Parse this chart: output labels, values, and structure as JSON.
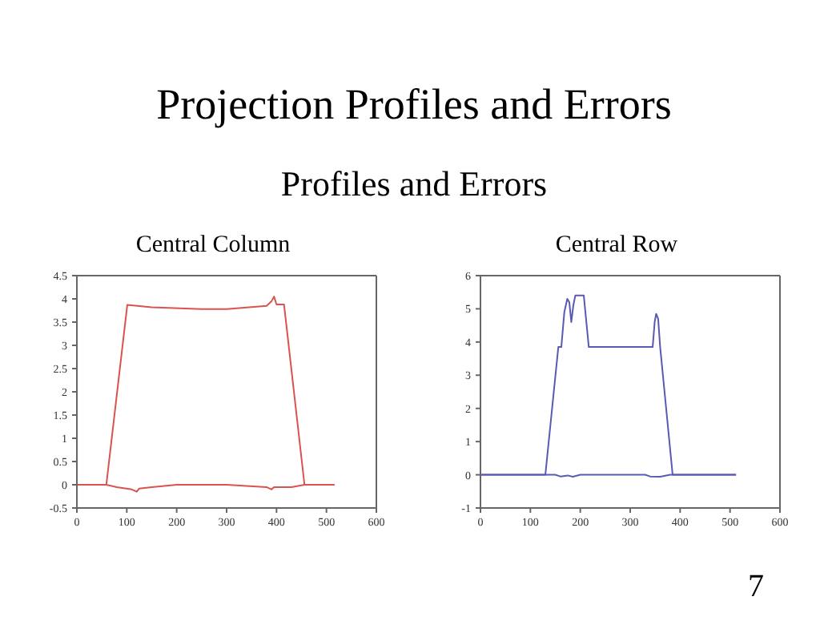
{
  "chart_data": [
    {
      "type": "line",
      "title": "Central Column",
      "annotations": [
        "Projection Profiles and Errors",
        "Profiles and Errors",
        "7"
      ],
      "xlim": [
        0,
        600
      ],
      "xticks": [
        0,
        100,
        200,
        300,
        400,
        500,
        600
      ],
      "ylim": [
        -0.5,
        4.5
      ],
      "yticks": [
        -0.5,
        0,
        0.5,
        1,
        1.5,
        2,
        2.5,
        3,
        3.5,
        4,
        4.5
      ],
      "marker": "none",
      "series": [
        {
          "color": "#d9534f",
          "x": [
            0,
            59,
            101,
            150,
            250,
            300,
            380,
            390,
            395,
            400,
            415,
            456,
            516
          ],
          "values": [
            0,
            0,
            3.87,
            3.82,
            3.78,
            3.78,
            3.85,
            3.95,
            4.05,
            3.88,
            3.88,
            0,
            0
          ]
        },
        {
          "color": "#d9534f",
          "x": [
            0,
            59,
            80,
            110,
            120,
            125,
            150,
            200,
            300,
            380,
            390,
            395,
            430,
            456,
            516
          ],
          "values": [
            0,
            0,
            -0.05,
            -0.1,
            -0.15,
            -0.08,
            -0.05,
            0,
            0,
            -0.05,
            -0.1,
            -0.05,
            -0.05,
            0,
            0
          ]
        }
      ]
    },
    {
      "type": "line",
      "title": "Central Row",
      "xlim": [
        0,
        600
      ],
      "xticks": [
        0,
        100,
        200,
        300,
        400,
        500,
        600
      ],
      "ylim": [
        -1,
        6
      ],
      "yticks": [
        -1,
        0,
        1,
        2,
        3,
        4,
        5,
        6
      ],
      "marker": "none",
      "series": [
        {
          "color": "#5a5ab4",
          "x": [
            0,
            130,
            156,
            162,
            168,
            174,
            178,
            182,
            186,
            190,
            207,
            217,
            345,
            349,
            352,
            356,
            360,
            385,
            512
          ],
          "values": [
            0,
            0,
            3.85,
            3.85,
            4.9,
            5.3,
            5.2,
            4.6,
            5.1,
            5.4,
            5.4,
            3.85,
            3.85,
            4.6,
            4.85,
            4.7,
            3.85,
            0,
            0
          ]
        },
        {
          "color": "#5a5ab4",
          "x": [
            0,
            150,
            160,
            175,
            185,
            200,
            330,
            340,
            360,
            380,
            512
          ],
          "values": [
            0,
            0,
            -0.05,
            -0.02,
            -0.06,
            0,
            0,
            -0.05,
            -0.06,
            0,
            0
          ]
        }
      ]
    }
  ]
}
